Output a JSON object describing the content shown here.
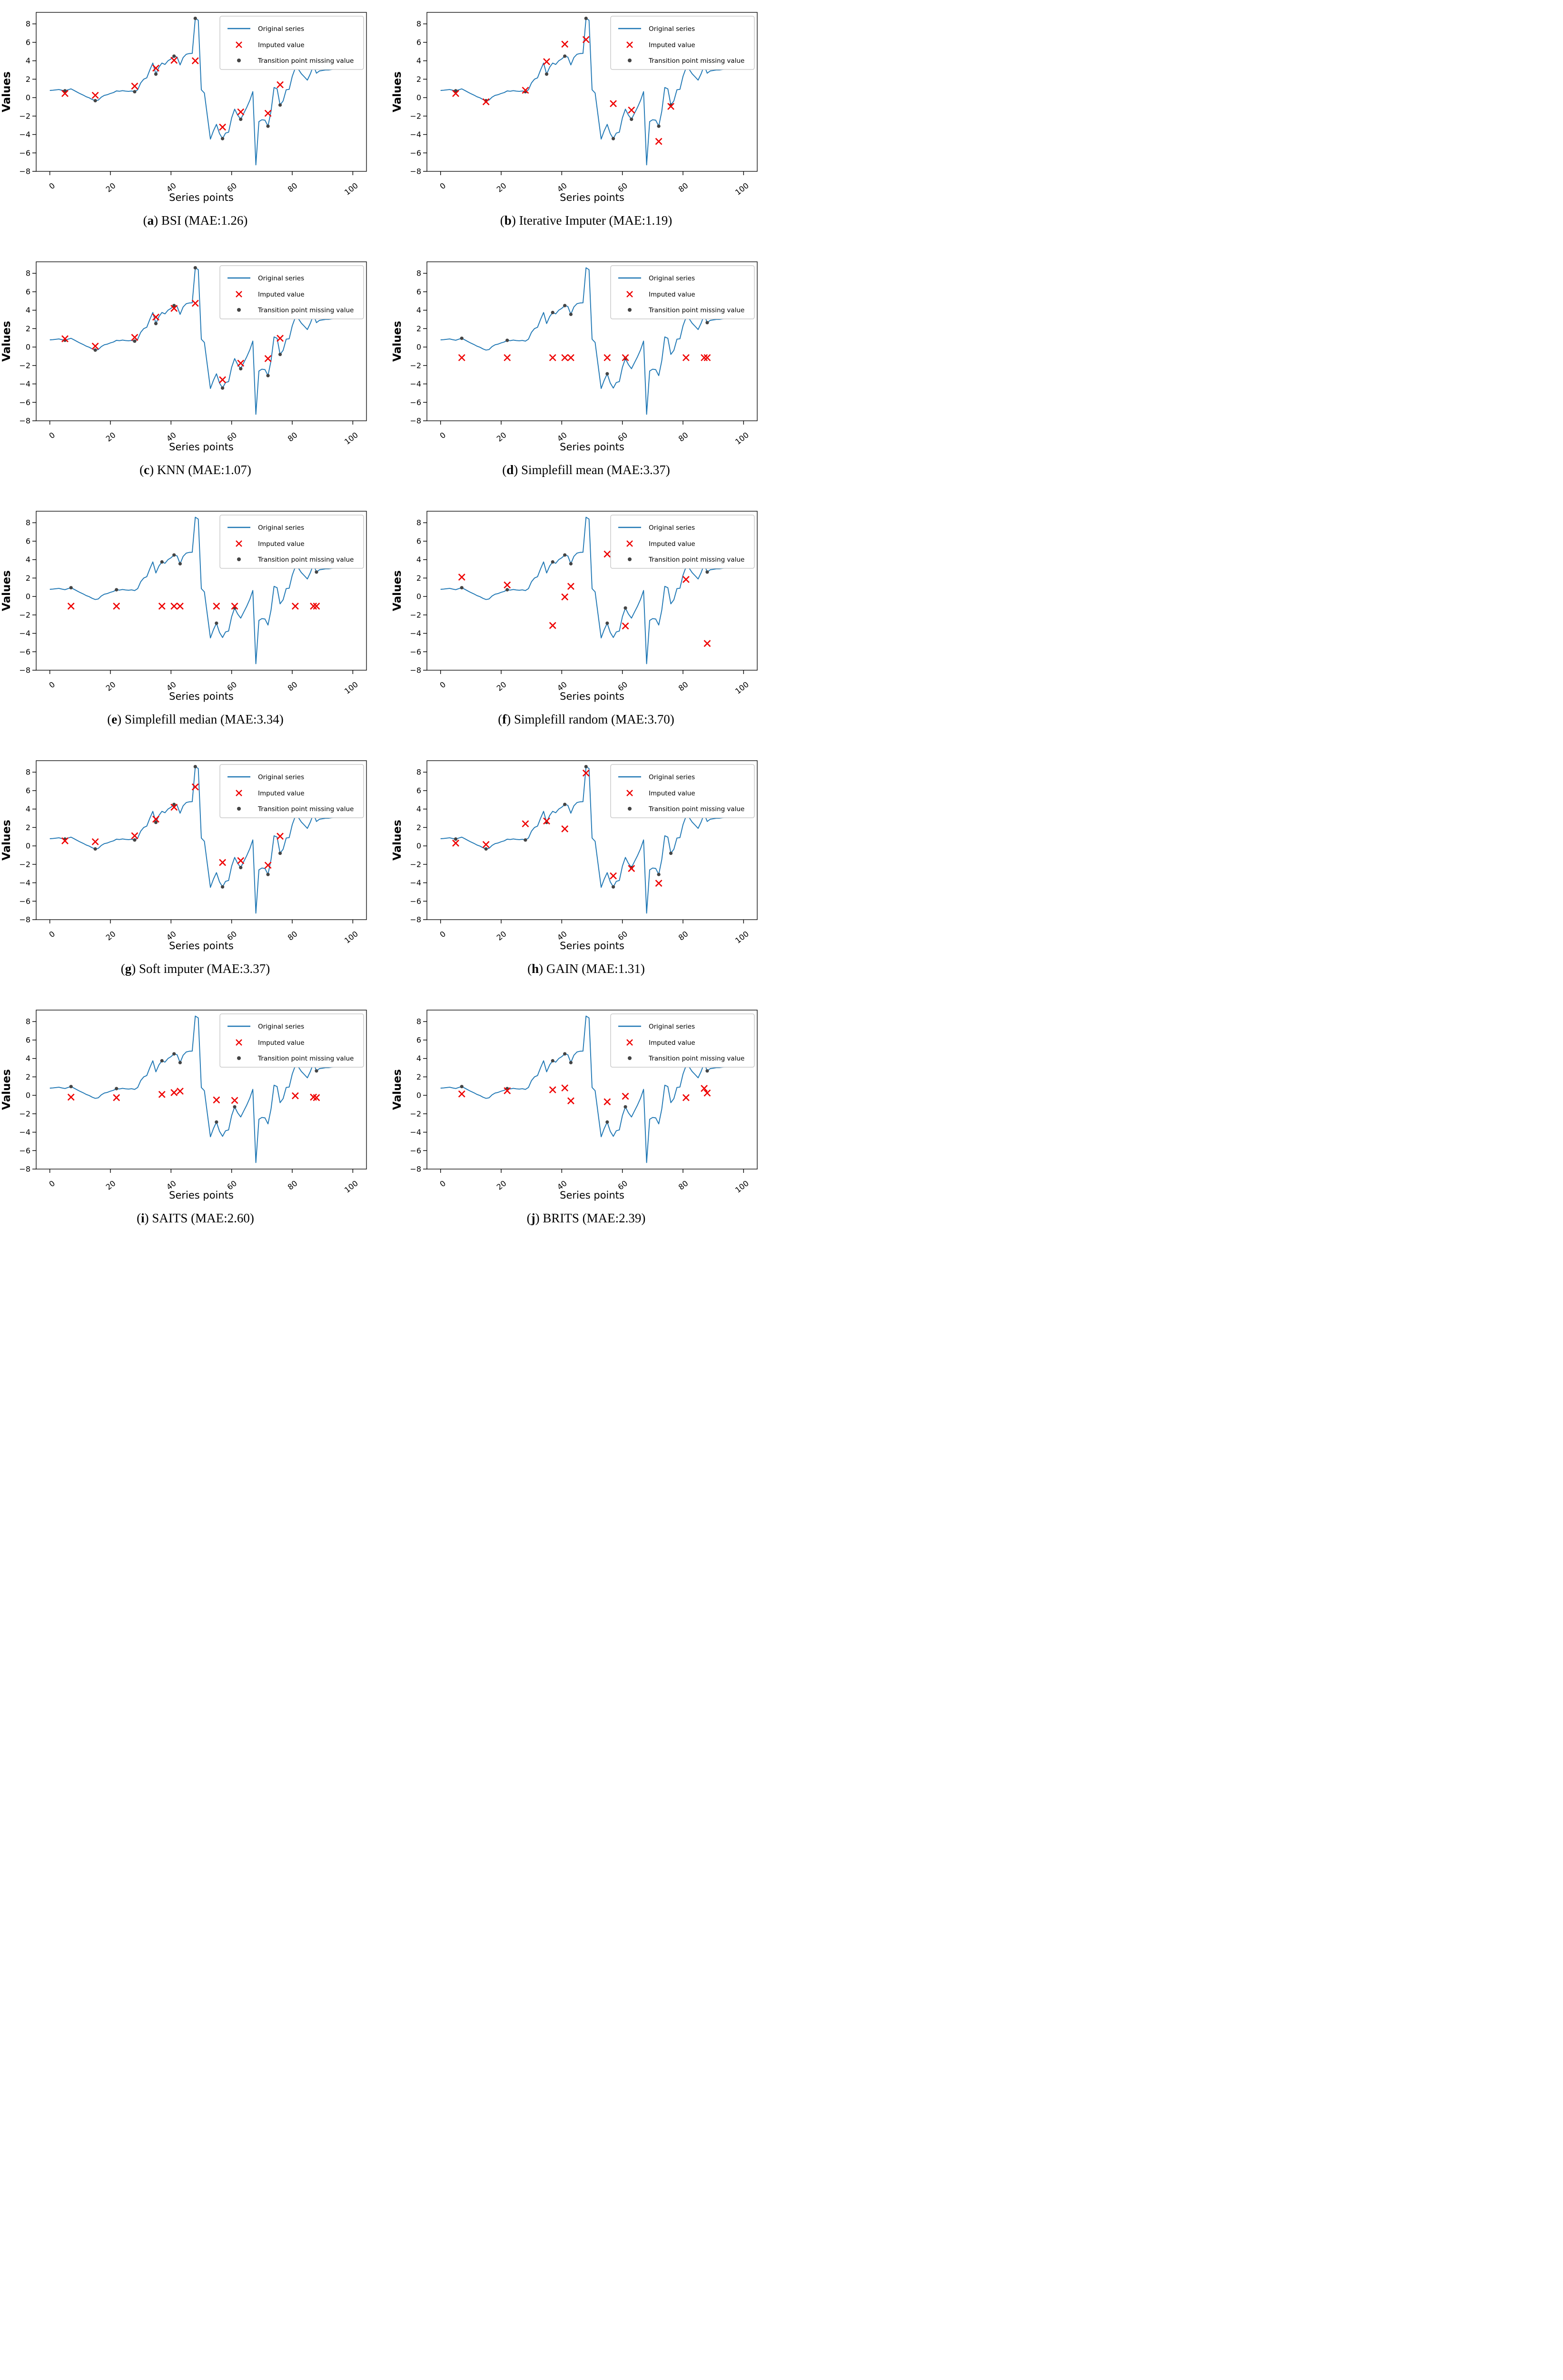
{
  "figure": {
    "description": "Grid of ten imputation comparison charts",
    "background": "#ffffff"
  },
  "chart_data": {
    "type": "line",
    "layout": {
      "rows": 5,
      "cols": 2,
      "grid": false,
      "legend_position": "upper right"
    },
    "shared": {
      "xlabel": "Series points",
      "ylabel": "Values",
      "xlim": [
        -4.5,
        104.5
      ],
      "ylim": [
        -8,
        9.25
      ],
      "xticks": [
        0,
        20,
        40,
        60,
        80,
        100
      ],
      "yticks": [
        8,
        6,
        4,
        2,
        0,
        -2,
        -4,
        -6,
        -8
      ],
      "legend": {
        "original": "Original series",
        "imputed": "Imputed value",
        "transition": "Transition point missing value"
      },
      "colors": {
        "line": "#1f77b4",
        "imputed": "#ee0000",
        "transition": "#444444",
        "spine": "#000000",
        "legend_border": "#cccccc"
      },
      "x_start": 0,
      "x_step": 1,
      "original_series_y": [
        0.78,
        0.8,
        0.84,
        0.88,
        0.8,
        0.74,
        0.85,
        0.95,
        0.78,
        0.6,
        0.43,
        0.28,
        0.1,
        -0.02,
        -0.2,
        -0.33,
        -0.27,
        0.05,
        0.25,
        0.32,
        0.45,
        0.55,
        0.73,
        0.69,
        0.76,
        0.71,
        0.68,
        0.72,
        0.64,
        0.85,
        1.6,
        2.0,
        2.15,
        3.0,
        3.75,
        2.55,
        3.3,
        3.75,
        3.6,
        4.0,
        4.2,
        4.5,
        4.4,
        3.55,
        4.35,
        4.7,
        4.78,
        4.8,
        8.6,
        8.4,
        0.85,
        0.5,
        -2.0,
        -4.5,
        -3.6,
        -2.9,
        -3.9,
        -4.45,
        -3.85,
        -3.75,
        -2.2,
        -1.25,
        -1.9,
        -2.35,
        -1.7,
        -1.05,
        -0.3,
        0.65,
        -7.3,
        -2.6,
        -2.4,
        -2.45,
        -3.1,
        -1.5,
        1.1,
        0.95,
        -0.8,
        -0.35,
        0.85,
        0.9,
        2.3,
        3.2,
        3.1,
        2.6,
        2.25,
        1.9,
        2.6,
        3.5,
        2.65,
        2.9,
        2.95,
        3.0,
        3.0,
        3.05,
        3.1,
        3.2,
        3.3,
        3.45,
        3.6,
        3.8
      ]
    },
    "panels": [
      {
        "letter": "a",
        "method": "BSI",
        "mae": 1.26,
        "caption_rest": "BSI (MAE:1.26)",
        "imputed": [
          [
            5,
            0.45
          ],
          [
            15,
            0.25
          ],
          [
            28,
            1.25
          ],
          [
            35,
            3.2
          ],
          [
            41,
            4.05
          ],
          [
            48,
            4.0
          ],
          [
            57,
            -3.2
          ],
          [
            63,
            -1.55
          ],
          [
            72,
            -1.7
          ],
          [
            76,
            1.4
          ]
        ],
        "transition_missing": [
          [
            5,
            0.74
          ],
          [
            15,
            -0.33
          ],
          [
            28,
            0.64
          ],
          [
            35,
            2.55
          ],
          [
            41,
            4.5
          ],
          [
            48,
            8.6
          ],
          [
            57,
            -4.45
          ],
          [
            63,
            -2.35
          ],
          [
            72,
            -3.1
          ],
          [
            76,
            -0.8
          ]
        ]
      },
      {
        "letter": "b",
        "method": "Iterative Imputer",
        "mae": 1.19,
        "caption_rest": "Iterative Imputer (MAE:1.19)",
        "imputed": [
          [
            5,
            0.45
          ],
          [
            15,
            -0.45
          ],
          [
            28,
            0.8
          ],
          [
            35,
            3.9
          ],
          [
            41,
            5.8
          ],
          [
            48,
            6.3
          ],
          [
            57,
            -0.65
          ],
          [
            63,
            -1.35
          ],
          [
            72,
            -4.75
          ],
          [
            76,
            -0.95
          ]
        ],
        "transition_missing": [
          [
            5,
            0.74
          ],
          [
            15,
            -0.33
          ],
          [
            28,
            0.64
          ],
          [
            35,
            2.55
          ],
          [
            41,
            4.5
          ],
          [
            48,
            8.6
          ],
          [
            57,
            -4.45
          ],
          [
            63,
            -2.35
          ],
          [
            72,
            -3.1
          ],
          [
            76,
            -0.8
          ]
        ]
      },
      {
        "letter": "c",
        "method": "KNN",
        "mae": 1.07,
        "caption_rest": "KNN (MAE:1.07)",
        "imputed": [
          [
            5,
            0.9
          ],
          [
            15,
            0.1
          ],
          [
            28,
            1.05
          ],
          [
            35,
            3.25
          ],
          [
            41,
            4.2
          ],
          [
            48,
            4.75
          ],
          [
            57,
            -3.55
          ],
          [
            63,
            -1.75
          ],
          [
            72,
            -1.25
          ],
          [
            76,
            0.95
          ]
        ],
        "transition_missing": [
          [
            5,
            0.74
          ],
          [
            15,
            -0.33
          ],
          [
            28,
            0.64
          ],
          [
            35,
            2.55
          ],
          [
            41,
            4.5
          ],
          [
            48,
            8.6
          ],
          [
            57,
            -4.45
          ],
          [
            63,
            -2.35
          ],
          [
            72,
            -3.1
          ],
          [
            76,
            -0.8
          ]
        ]
      },
      {
        "letter": "d",
        "method": "Simplefill mean",
        "mae": 3.37,
        "caption_rest": "Simplefill mean (MAE:3.37)",
        "imputed": [
          [
            7,
            -1.15
          ],
          [
            22,
            -1.15
          ],
          [
            37,
            -1.15
          ],
          [
            41,
            -1.15
          ],
          [
            43,
            -1.15
          ],
          [
            55,
            -1.15
          ],
          [
            61,
            -1.15
          ],
          [
            81,
            -1.15
          ],
          [
            87,
            -1.15
          ],
          [
            88,
            -1.15
          ]
        ],
        "transition_missing": [
          [
            7,
            0.95
          ],
          [
            22,
            0.73
          ],
          [
            37,
            3.75
          ],
          [
            41,
            4.5
          ],
          [
            43,
            3.55
          ],
          [
            55,
            -2.9
          ],
          [
            61,
            -1.25
          ],
          [
            81,
            3.2
          ],
          [
            87,
            3.5
          ],
          [
            88,
            2.65
          ]
        ]
      },
      {
        "letter": "e",
        "method": "Simplefill median",
        "mae": 3.34,
        "caption_rest": "Simplefill median (MAE:3.34)",
        "imputed": [
          [
            7,
            -1.05
          ],
          [
            22,
            -1.05
          ],
          [
            37,
            -1.05
          ],
          [
            41,
            -1.05
          ],
          [
            43,
            -1.05
          ],
          [
            55,
            -1.05
          ],
          [
            61,
            -1.05
          ],
          [
            81,
            -1.05
          ],
          [
            87,
            -1.05
          ],
          [
            88,
            -1.05
          ]
        ],
        "transition_missing": [
          [
            7,
            0.95
          ],
          [
            22,
            0.73
          ],
          [
            37,
            3.75
          ],
          [
            41,
            4.5
          ],
          [
            43,
            3.55
          ],
          [
            55,
            -2.9
          ],
          [
            61,
            -1.25
          ],
          [
            81,
            3.2
          ],
          [
            87,
            3.5
          ],
          [
            88,
            2.65
          ]
        ]
      },
      {
        "letter": "f",
        "method": "Simplefill random",
        "mae": 3.7,
        "caption_rest": "Simplefill random (MAE:3.70)",
        "imputed": [
          [
            7,
            2.1
          ],
          [
            22,
            1.25
          ],
          [
            37,
            -3.15
          ],
          [
            41,
            -0.05
          ],
          [
            43,
            1.1
          ],
          [
            55,
            4.6
          ],
          [
            61,
            -3.2
          ],
          [
            81,
            1.85
          ],
          [
            87,
            4.85
          ],
          [
            88,
            -5.1
          ]
        ],
        "transition_missing": [
          [
            7,
            0.95
          ],
          [
            22,
            0.73
          ],
          [
            37,
            3.75
          ],
          [
            41,
            4.5
          ],
          [
            43,
            3.55
          ],
          [
            55,
            -2.9
          ],
          [
            61,
            -1.25
          ],
          [
            81,
            3.2
          ],
          [
            87,
            3.5
          ],
          [
            88,
            2.65
          ]
        ]
      },
      {
        "letter": "g",
        "method": "Soft imputer",
        "mae": 3.37,
        "caption_rest": "Soft imputer (MAE:3.37)",
        "imputed": [
          [
            5,
            0.55
          ],
          [
            15,
            0.45
          ],
          [
            28,
            1.1
          ],
          [
            35,
            2.9
          ],
          [
            41,
            4.2
          ],
          [
            48,
            6.4
          ],
          [
            57,
            -1.8
          ],
          [
            63,
            -1.6
          ],
          [
            72,
            -2.1
          ],
          [
            76,
            1.05
          ]
        ],
        "transition_missing": [
          [
            5,
            0.74
          ],
          [
            15,
            -0.33
          ],
          [
            28,
            0.64
          ],
          [
            35,
            2.55
          ],
          [
            41,
            4.5
          ],
          [
            48,
            8.6
          ],
          [
            57,
            -4.45
          ],
          [
            63,
            -2.35
          ],
          [
            72,
            -3.1
          ],
          [
            76,
            -0.8
          ]
        ]
      },
      {
        "letter": "h",
        "method": "GAIN",
        "mae": 1.31,
        "caption_rest": "GAIN (MAE:1.31)",
        "imputed": [
          [
            5,
            0.3
          ],
          [
            15,
            0.15
          ],
          [
            28,
            2.4
          ],
          [
            35,
            2.7
          ],
          [
            41,
            1.85
          ],
          [
            48,
            7.9
          ],
          [
            57,
            -3.25
          ],
          [
            63,
            -2.45
          ],
          [
            72,
            -4.05
          ],
          [
            76,
            4.0
          ]
        ],
        "transition_missing": [
          [
            5,
            0.74
          ],
          [
            15,
            -0.33
          ],
          [
            28,
            0.64
          ],
          [
            35,
            2.55
          ],
          [
            41,
            4.5
          ],
          [
            48,
            8.6
          ],
          [
            57,
            -4.45
          ],
          [
            63,
            -2.35
          ],
          [
            72,
            -3.1
          ],
          [
            76,
            -0.8
          ]
        ]
      },
      {
        "letter": "i",
        "method": "SAITS",
        "mae": 2.6,
        "caption_rest": "SAITS (MAE:2.60)",
        "imputed": [
          [
            7,
            -0.2
          ],
          [
            22,
            -0.25
          ],
          [
            37,
            0.1
          ],
          [
            41,
            0.3
          ],
          [
            43,
            0.45
          ],
          [
            55,
            -0.5
          ],
          [
            61,
            -0.55
          ],
          [
            81,
            -0.05
          ],
          [
            87,
            -0.2
          ],
          [
            88,
            -0.25
          ]
        ],
        "transition_missing": [
          [
            7,
            0.95
          ],
          [
            22,
            0.73
          ],
          [
            37,
            3.75
          ],
          [
            41,
            4.5
          ],
          [
            43,
            3.55
          ],
          [
            55,
            -2.9
          ],
          [
            61,
            -1.25
          ],
          [
            81,
            3.2
          ],
          [
            87,
            3.5
          ],
          [
            88,
            2.65
          ]
        ]
      },
      {
        "letter": "j",
        "method": "BRITS",
        "mae": 2.39,
        "caption_rest": "BRITS (MAE:2.39)",
        "imputed": [
          [
            7,
            0.15
          ],
          [
            22,
            0.5
          ],
          [
            37,
            0.6
          ],
          [
            41,
            0.8
          ],
          [
            43,
            -0.6
          ],
          [
            55,
            -0.7
          ],
          [
            61,
            -0.1
          ],
          [
            81,
            -0.25
          ],
          [
            87,
            0.75
          ],
          [
            88,
            0.25
          ]
        ],
        "transition_missing": [
          [
            7,
            0.95
          ],
          [
            22,
            0.73
          ],
          [
            37,
            3.75
          ],
          [
            41,
            4.5
          ],
          [
            43,
            3.55
          ],
          [
            55,
            -2.9
          ],
          [
            61,
            -1.25
          ],
          [
            81,
            3.2
          ],
          [
            87,
            3.5
          ],
          [
            88,
            2.65
          ]
        ]
      }
    ]
  }
}
